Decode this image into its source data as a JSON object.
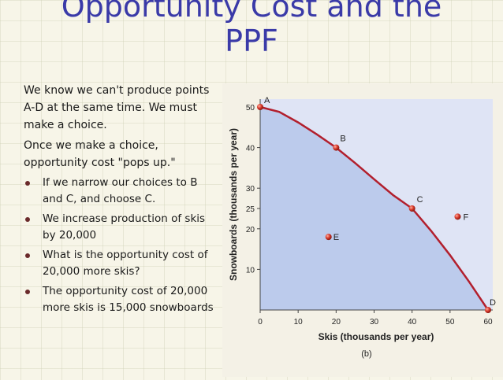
{
  "slide": {
    "title_line1": "Opportunity Cost and the",
    "title_line2": "PPF",
    "para1": "We know we can't produce points A-D at the same time. We must make a choice.",
    "para2": "Once we make a choice, opportunity cost \"pops up.\"",
    "bullets": [
      "If we narrow our choices to B and C, and choose C.",
      "We increase production of skis by 20,000",
      "What is the opportunity cost of  20,000 more skis?",
      "The opportunity cost of 20,000 more skis is 15,000 snowboards"
    ]
  },
  "chart_data": {
    "type": "line",
    "title": "",
    "xlabel": "Skis (thousands per year)",
    "ylabel": "Snowboards (thousands per year)",
    "caption": "(b)",
    "xlim": [
      0,
      60
    ],
    "ylim": [
      0,
      50
    ],
    "xticks": [
      0,
      10,
      20,
      30,
      40,
      50,
      60
    ],
    "yticks": [
      10,
      20,
      25,
      30,
      40,
      50
    ],
    "series": [
      {
        "x": [
          0,
          5,
          10,
          15,
          20,
          25,
          30,
          35,
          40,
          45,
          50,
          55,
          60
        ],
        "y": [
          50,
          48.8,
          46.2,
          43.2,
          40,
          36.2,
          32.2,
          28.3,
          25,
          19.5,
          13.5,
          7,
          0
        ]
      }
    ],
    "points": [
      {
        "label": "A",
        "x": 0,
        "y": 50
      },
      {
        "label": "B",
        "x": 20,
        "y": 40
      },
      {
        "label": "C",
        "x": 40,
        "y": 25
      },
      {
        "label": "D",
        "x": 60,
        "y": 0
      },
      {
        "label": "E",
        "x": 18,
        "y": 18
      },
      {
        "label": "F",
        "x": 52,
        "y": 23
      }
    ],
    "colors": {
      "curve": "#b21f2d",
      "fill_inside": "#bccbec",
      "plot_bg": "#dfe4f5",
      "point": "#d8382a"
    },
    "grid": false
  }
}
